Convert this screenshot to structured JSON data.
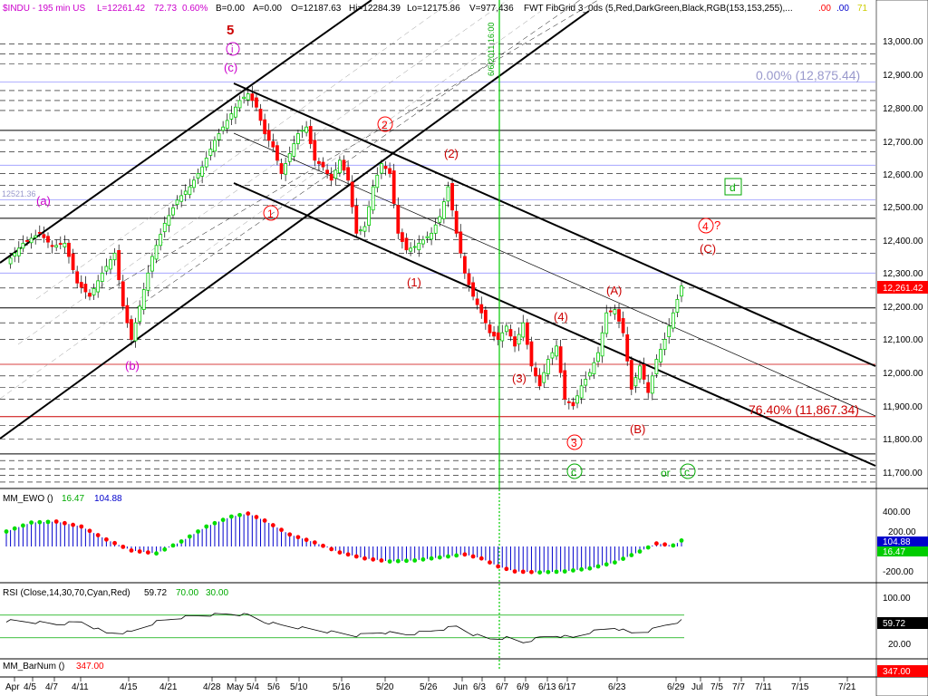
{
  "header": {
    "symbol": "$INDU - 195 min  US",
    "last": "L=12261.42",
    "change": "72.73",
    "change_pct": "0.60%",
    "b_label": "B=0.00",
    "a_label": "A=0.00",
    "open": "O=12187.63",
    "high": "Hi=12284.39",
    "low": "Lo=12175.86",
    "volume": "V=977,436",
    "study": "FWT FibGrid 3_0ds (5,Red,DarkGreen,Black,RGB(153,153,255),...",
    "tail_1": ".00",
    "tail_2": ".00",
    "tail_3": "71"
  },
  "vline_label": "6/6/2011 16:00",
  "fib_labels": {
    "top": "0.00% (12,875.44)",
    "bottom": "76.40% (11,867.34)",
    "left_value": "12521.36"
  },
  "price_axis": {
    "ticks": [
      "13,000.00",
      "12,900.00",
      "12,800.00",
      "12,700.00",
      "12,600.00",
      "12,500.00",
      "12,400.00",
      "12,300.00",
      "12,200.00",
      "12,100.00",
      "12,000.00",
      "11,900.00",
      "11,800.00",
      "11,700.00"
    ],
    "last_badge": "12,261.42",
    "last_badge_color": "#ff0000"
  },
  "wave_labels": {
    "five": "5",
    "i": "i",
    "c_paren": "(c)",
    "a_paren": "(a)",
    "b_paren": "(b)",
    "one_circ": "1",
    "two_circ": "2",
    "three_circ": "3",
    "four_circ": "4",
    "question": "?",
    "one_paren": "(1)",
    "two_paren": "(2)",
    "three_paren": "(3)",
    "four_paren": "(4)",
    "A_paren": "(A)",
    "B_paren": "(B)",
    "C_paren": "(C)",
    "c_circ_green": "c",
    "or_text": "or",
    "d_box": "d"
  },
  "panels": {
    "ewo": {
      "title": "MM_EWO ()",
      "v1": "16.47",
      "v2": "104.88",
      "axis": [
        "400.00",
        "200.00",
        "-200.00"
      ],
      "badge_1": "104.88",
      "badge_2": "16.47"
    },
    "rsi": {
      "title": "RSI (Close,14,30,70,Cyan,Red)",
      "v1": "59.72",
      "v2": "70.00",
      "v3": "30.00",
      "axis": [
        "100.00",
        "20.00"
      ],
      "badge": "59.72"
    },
    "barnum": {
      "title": "MM_BarNum ()",
      "v1": "347.00",
      "badge": "347.00"
    }
  },
  "date_axis": [
    "Apr",
    "4/5",
    "4/7",
    "4/11",
    "4/15",
    "4/21",
    "4/28",
    "May",
    "5/4",
    "5/6",
    "5/10",
    "5/16",
    "5/20",
    "5/26",
    "Jun",
    "6/3",
    "6/7",
    "6/9",
    "6/13",
    "6/17",
    "6/23",
    "6/29",
    "Jul",
    "7/5",
    "7/7",
    "7/11",
    "7/15",
    "7/21"
  ],
  "colors": {
    "up": "#00cc00",
    "down": "#ff0000",
    "black": "#000000",
    "green": "#00aa00",
    "magenta": "#cc00cc",
    "blue": "#0000cc"
  },
  "chart_data": {
    "type": "candlestick",
    "title": "$INDU - 195 min",
    "ylim": [
      11650,
      13080
    ],
    "last_price": 12261.42,
    "fib_levels": [
      {
        "label": "0.00%",
        "value": 12875.44
      },
      {
        "label": "76.40%",
        "value": 11867.34
      }
    ],
    "close_path": [
      [
        0,
        12330
      ],
      [
        4,
        12390
      ],
      [
        8,
        12420
      ],
      [
        11,
        12380
      ],
      [
        14,
        12390
      ],
      [
        17,
        12270
      ],
      [
        20,
        12230
      ],
      [
        23,
        12300
      ],
      [
        26,
        12360
      ],
      [
        28,
        12200
      ],
      [
        30,
        12100
      ],
      [
        32,
        12200
      ],
      [
        35,
        12350
      ],
      [
        38,
        12450
      ],
      [
        41,
        12520
      ],
      [
        44,
        12560
      ],
      [
        47,
        12620
      ],
      [
        50,
        12700
      ],
      [
        53,
        12760
      ],
      [
        56,
        12820
      ],
      [
        58,
        12840
      ],
      [
        60,
        12800
      ],
      [
        62,
        12720
      ],
      [
        64,
        12680
      ],
      [
        66,
        12600
      ],
      [
        68,
        12660
      ],
      [
        70,
        12720
      ],
      [
        72,
        12740
      ],
      [
        74,
        12640
      ],
      [
        76,
        12620
      ],
      [
        78,
        12580
      ],
      [
        80,
        12640
      ],
      [
        82,
        12580
      ],
      [
        84,
        12420
      ],
      [
        86,
        12440
      ],
      [
        88,
        12560
      ],
      [
        90,
        12630
      ],
      [
        92,
        12600
      ],
      [
        94,
        12420
      ],
      [
        96,
        12370
      ],
      [
        98,
        12380
      ],
      [
        100,
        12400
      ],
      [
        102,
        12420
      ],
      [
        104,
        12470
      ],
      [
        106,
        12560
      ],
      [
        108,
        12420
      ],
      [
        110,
        12300
      ],
      [
        112,
        12230
      ],
      [
        114,
        12180
      ],
      [
        116,
        12120
      ],
      [
        118,
        12100
      ],
      [
        120,
        12140
      ],
      [
        122,
        12080
      ],
      [
        124,
        12150
      ],
      [
        126,
        12020
      ],
      [
        128,
        11960
      ],
      [
        130,
        12040
      ],
      [
        132,
        12080
      ],
      [
        134,
        11920
      ],
      [
        136,
        11900
      ],
      [
        138,
        11960
      ],
      [
        140,
        12000
      ],
      [
        142,
        12060
      ],
      [
        144,
        12180
      ],
      [
        146,
        12190
      ],
      [
        148,
        12120
      ],
      [
        150,
        11950
      ],
      [
        152,
        12020
      ],
      [
        154,
        11940
      ],
      [
        156,
        12040
      ],
      [
        158,
        12100
      ],
      [
        160,
        12180
      ],
      [
        162,
        12261
      ]
    ],
    "ewo_series": [
      [
        0,
        150
      ],
      [
        6,
        240
      ],
      [
        12,
        250
      ],
      [
        18,
        200
      ],
      [
        24,
        70
      ],
      [
        30,
        -40
      ],
      [
        36,
        -70
      ],
      [
        42,
        50
      ],
      [
        48,
        200
      ],
      [
        54,
        300
      ],
      [
        58,
        330
      ],
      [
        62,
        260
      ],
      [
        68,
        120
      ],
      [
        74,
        40
      ],
      [
        80,
        -60
      ],
      [
        86,
        -120
      ],
      [
        92,
        -150
      ],
      [
        98,
        -140
      ],
      [
        104,
        -110
      ],
      [
        110,
        -80
      ],
      [
        114,
        -120
      ],
      [
        118,
        -200
      ],
      [
        122,
        -250
      ],
      [
        128,
        -260
      ],
      [
        134,
        -250
      ],
      [
        140,
        -220
      ],
      [
        146,
        -160
      ],
      [
        152,
        -50
      ],
      [
        156,
        30
      ],
      [
        160,
        10
      ],
      [
        162,
        60
      ]
    ],
    "rsi_series": [
      [
        0,
        60
      ],
      [
        6,
        58
      ],
      [
        12,
        54
      ],
      [
        18,
        58
      ],
      [
        24,
        38
      ],
      [
        30,
        40
      ],
      [
        36,
        58
      ],
      [
        42,
        66
      ],
      [
        48,
        70
      ],
      [
        54,
        72
      ],
      [
        58,
        70
      ],
      [
        62,
        58
      ],
      [
        66,
        52
      ],
      [
        72,
        46
      ],
      [
        78,
        40
      ],
      [
        84,
        34
      ],
      [
        90,
        40
      ],
      [
        96,
        36
      ],
      [
        102,
        42
      ],
      [
        108,
        50
      ],
      [
        112,
        36
      ],
      [
        116,
        28
      ],
      [
        120,
        30
      ],
      [
        124,
        22
      ],
      [
        128,
        30
      ],
      [
        132,
        34
      ],
      [
        136,
        30
      ],
      [
        140,
        40
      ],
      [
        146,
        48
      ],
      [
        150,
        38
      ],
      [
        154,
        42
      ],
      [
        158,
        52
      ],
      [
        162,
        60
      ]
    ]
  }
}
